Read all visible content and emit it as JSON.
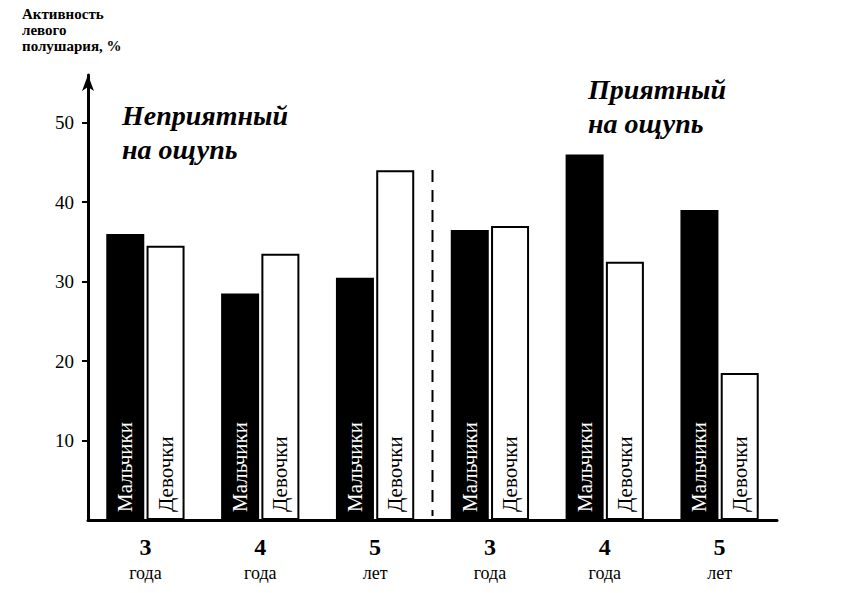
{
  "chart_data": {
    "type": "bar",
    "y_label": "Активность\nлевого\nполушария, %",
    "categories": [
      "3\nгода",
      "4\nгода",
      "5\nлет",
      "3\nгода",
      "4\nгода",
      "5\nлет"
    ],
    "annotations": [
      "Неприятный\nна ощупь",
      "Приятный\nна ощупь"
    ],
    "series": [
      {
        "name": "Мальчики",
        "color": "#000000",
        "values": [
          36,
          28.5,
          30.5,
          36.5,
          46,
          39
        ]
      },
      {
        "name": "Девочки",
        "color": "#ffffff",
        "values": [
          34.5,
          33.5,
          44,
          37,
          32.5,
          18.5
        ]
      }
    ],
    "ylim": [
      0,
      56
    ],
    "yticks": [
      10,
      20,
      30,
      40,
      50
    ],
    "grid": false
  }
}
